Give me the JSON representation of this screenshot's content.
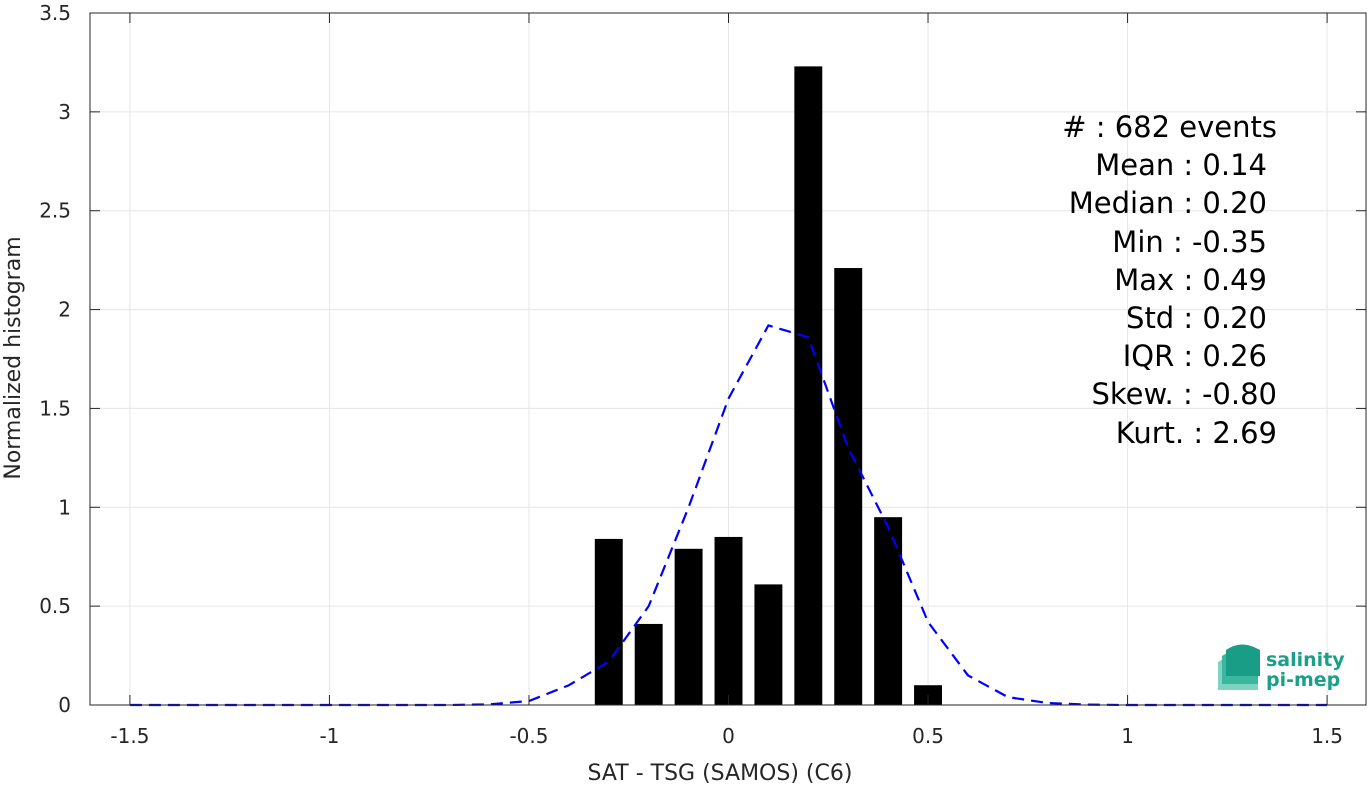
{
  "chart_data": {
    "type": "bar",
    "xlabel": "SAT - TSG (SAMOS) (C6)",
    "ylabel": "Normalized histogram",
    "xlim": [
      -1.6,
      1.6
    ],
    "ylim": [
      0,
      3.5
    ],
    "grid": true,
    "x_ticks": [
      "-1.5",
      "-1",
      "-0.5",
      "0",
      "0.5",
      "1",
      "1.5"
    ],
    "y_ticks": [
      "0",
      "0.5",
      "1",
      "1.5",
      "2",
      "2.5",
      "3",
      "3.5"
    ],
    "x_tick_values": [
      -1.5,
      -1,
      -0.5,
      0,
      0.5,
      1,
      1.5
    ],
    "y_tick_values": [
      0,
      0.5,
      1,
      1.5,
      2,
      2.5,
      3,
      3.5
    ],
    "bin_width": 0.1,
    "bars": [
      {
        "x": -0.3,
        "value": 0.84
      },
      {
        "x": -0.2,
        "value": 0.41
      },
      {
        "x": -0.1,
        "value": 0.79
      },
      {
        "x": 0.0,
        "value": 0.85
      },
      {
        "x": 0.1,
        "value": 0.61
      },
      {
        "x": 0.2,
        "value": 3.23
      },
      {
        "x": 0.3,
        "value": 2.21
      },
      {
        "x": 0.4,
        "value": 0.95
      },
      {
        "x": 0.5,
        "value": 0.1
      }
    ],
    "series": [
      {
        "type": "line",
        "style": "dashed",
        "color": "#0000ff",
        "x": [
          -1.5,
          -1.4,
          -1.3,
          -1.2,
          -1.1,
          -1.0,
          -0.9,
          -0.8,
          -0.7,
          -0.6,
          -0.5,
          -0.4,
          -0.3,
          -0.2,
          -0.1,
          0.0,
          0.1,
          0.2,
          0.3,
          0.4,
          0.5,
          0.6,
          0.7,
          0.8,
          0.9,
          1.0,
          1.1,
          1.2,
          1.3,
          1.4,
          1.5
        ],
        "y": [
          0,
          0,
          0,
          0,
          0,
          0,
          0,
          0,
          0,
          0.003,
          0.02,
          0.1,
          0.22,
          0.5,
          1.0,
          1.55,
          1.92,
          1.86,
          1.3,
          0.9,
          0.42,
          0.15,
          0.04,
          0.01,
          0.002,
          0,
          0,
          0,
          0,
          0,
          0
        ]
      }
    ],
    "bar_color": "#000000",
    "stats": {
      "count": "#  : 682 events",
      "mean": "Mean : 0.14",
      "median": "Median : 0.20",
      "min": "Min : -0.35",
      "max": "Max : 0.49",
      "std": "Std : 0.20",
      "iqr": "IQR : 0.26",
      "skew": "Skew. : -0.80",
      "kurt": "Kurt. : 2.69"
    }
  },
  "logo": {
    "line1": "salinity",
    "line2": "pi-mep",
    "color": "#1aa08a"
  }
}
